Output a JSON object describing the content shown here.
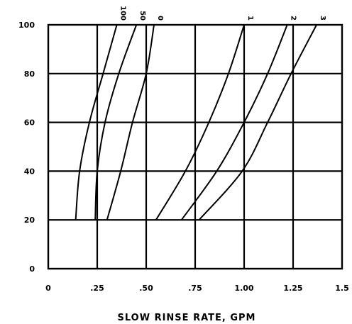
{
  "chart_data": {
    "type": "line",
    "title": "",
    "xlabel": "SLOW RINSE RATE, GPM",
    "ylabel": "",
    "xlim": [
      0,
      1.5
    ],
    "ylim": [
      0,
      100
    ],
    "x_ticks": [
      {
        "value": 0,
        "label": "0"
      },
      {
        "value": 0.25,
        "label": ".25"
      },
      {
        "value": 0.5,
        "label": ".50"
      },
      {
        "value": 0.75,
        "label": ".75"
      },
      {
        "value": 1.0,
        "label": "1.00"
      },
      {
        "value": 1.25,
        "label": "1.25"
      },
      {
        "value": 1.5,
        "label": "1.5"
      }
    ],
    "y_ticks": [
      {
        "value": 0,
        "label": "0"
      },
      {
        "value": 20,
        "label": "20"
      },
      {
        "value": 40,
        "label": "40"
      },
      {
        "value": 60,
        "label": "60"
      },
      {
        "value": 80,
        "label": "80"
      },
      {
        "value": 100,
        "label": "100"
      }
    ],
    "grid": true,
    "series": [
      {
        "name": "100",
        "points": [
          [
            0.14,
            20
          ],
          [
            0.16,
            40
          ],
          [
            0.21,
            60
          ],
          [
            0.28,
            80
          ],
          [
            0.35,
            100
          ]
        ]
      },
      {
        "name": "50",
        "points": [
          [
            0.24,
            20
          ],
          [
            0.25,
            40
          ],
          [
            0.29,
            60
          ],
          [
            0.36,
            80
          ],
          [
            0.45,
            100
          ]
        ]
      },
      {
        "name": "0",
        "points": [
          [
            0.3,
            20
          ],
          [
            0.37,
            40
          ],
          [
            0.43,
            60
          ],
          [
            0.5,
            80
          ],
          [
            0.54,
            100
          ]
        ]
      },
      {
        "name": "1",
        "points": [
          [
            0.55,
            20
          ],
          [
            0.7,
            40
          ],
          [
            0.82,
            60
          ],
          [
            0.92,
            80
          ],
          [
            1.0,
            100
          ]
        ]
      },
      {
        "name": "2",
        "points": [
          [
            0.68,
            20
          ],
          [
            0.86,
            40
          ],
          [
            1.0,
            60
          ],
          [
            1.12,
            80
          ],
          [
            1.22,
            100
          ]
        ]
      },
      {
        "name": "3",
        "points": [
          [
            0.77,
            20
          ],
          [
            0.99,
            40
          ],
          [
            1.12,
            60
          ],
          [
            1.24,
            80
          ],
          [
            1.37,
            100
          ]
        ]
      }
    ]
  }
}
